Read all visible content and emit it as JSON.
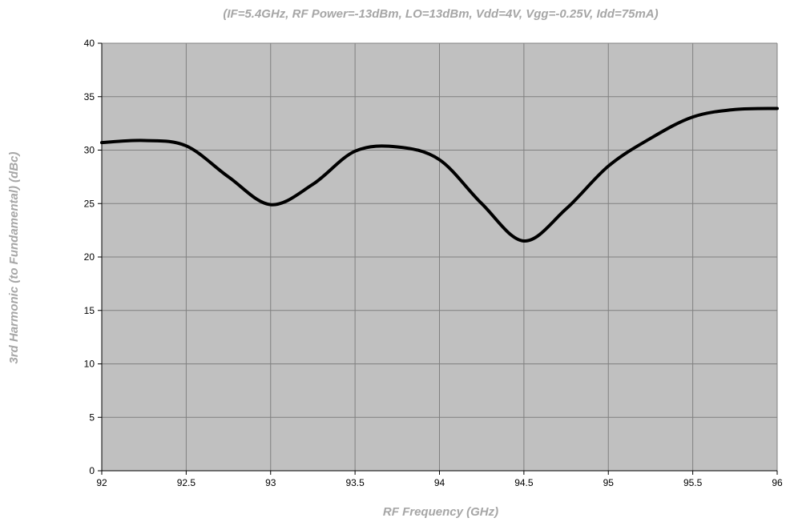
{
  "chart_data": {
    "type": "line",
    "title": "",
    "subtitle": "(IF=5.4GHz, RF Power=-13dBm, LO=13dBm, Vdd=4V, Vgg=-0.25V, Idd=75mA)",
    "xlabel": "RF Frequency (GHz)",
    "ylabel": "3rd Harmonic (to Fundamental) (dBc)",
    "xlim": [
      92,
      96
    ],
    "ylim": [
      0,
      40
    ],
    "xticks": [
      92,
      92.5,
      93,
      93.5,
      94,
      94.5,
      95,
      95.5,
      96
    ],
    "yticks": [
      0,
      5,
      10,
      15,
      20,
      25,
      30,
      35,
      40
    ],
    "xtick_labels": [
      "92",
      "92.5",
      "93",
      "93.5",
      "94",
      "94.5",
      "95",
      "95.5",
      "96"
    ],
    "ytick_labels": [
      "0",
      "5",
      "10",
      "15",
      "20",
      "25",
      "30",
      "35",
      "40"
    ],
    "grid": true,
    "series": [
      {
        "name": "",
        "color": "#000000",
        "x": [
          92,
          92.25,
          92.5,
          92.75,
          93,
          93.25,
          93.5,
          93.75,
          94,
          94.25,
          94.5,
          94.75,
          95,
          95.25,
          95.5,
          95.75,
          96
        ],
        "y": [
          30.7,
          30.9,
          30.4,
          27.5,
          24.9,
          26.8,
          29.9,
          30.3,
          29.1,
          25.0,
          21.5,
          24.5,
          28.5,
          31.1,
          33.1,
          33.8,
          33.9
        ]
      }
    ],
    "colors": {
      "plot_background": "#c0c0c0",
      "grid": "#808080",
      "axis": "#000000",
      "text_muted": "#a6a6a6"
    }
  }
}
